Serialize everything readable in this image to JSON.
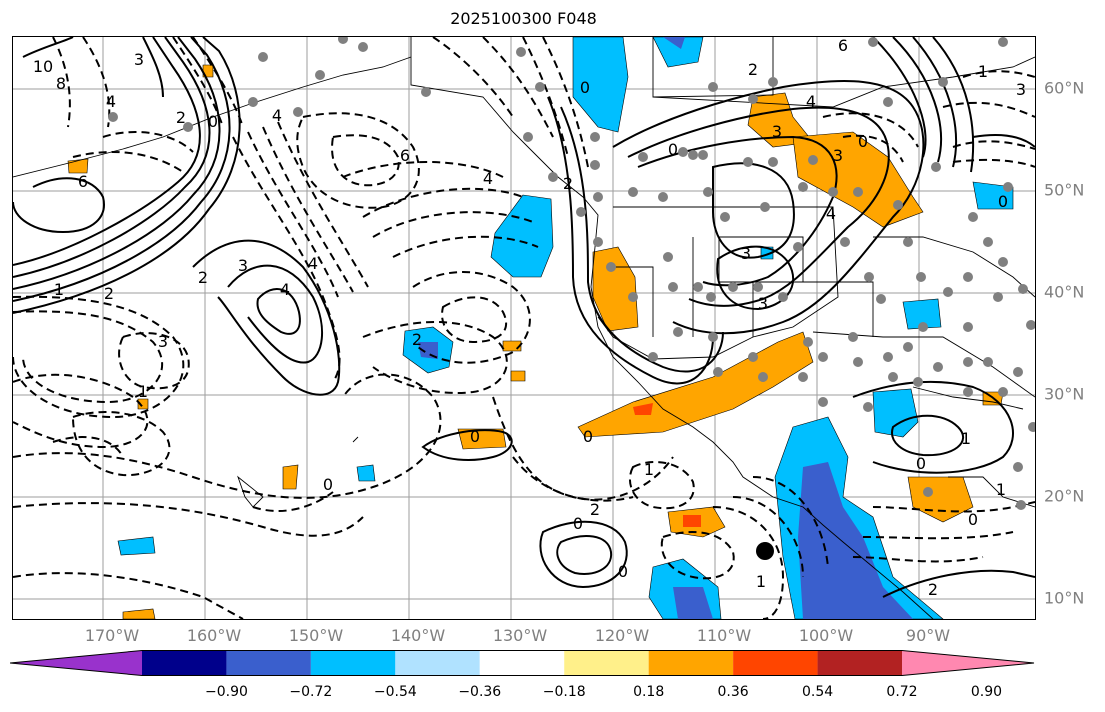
{
  "title": "2025100300 F048",
  "map": {
    "latitude_labels": [
      "60°N",
      "50°N",
      "40°N",
      "30°N",
      "20°N",
      "10°N"
    ],
    "longitude_labels": [
      "170°W",
      "160°W",
      "150°W",
      "140°W",
      "130°W",
      "120°W",
      "110°W",
      "100°W",
      "90°W"
    ],
    "contour_labels": [
      "10",
      "8",
      "4",
      "3",
      "2",
      "4",
      "6",
      "6",
      "4",
      "2",
      "4",
      "3",
      "4",
      "1",
      "2",
      "3",
      "1",
      "0",
      "2",
      "0",
      "2",
      "0",
      "1",
      "0",
      "0",
      "2",
      "0",
      "3",
      "4",
      "3",
      "6",
      "4",
      "3",
      "3",
      "1",
      "0",
      "1",
      "0",
      "2",
      "1",
      "0",
      "3",
      "1",
      "2",
      "0",
      "0",
      "0"
    ],
    "colors": {
      "frame": "#000000",
      "grid": "#9e9e9e",
      "station": "#808080",
      "positive_light": "#ffe680",
      "positive_mid": "#ffa500",
      "positive_strong": "#ff4500",
      "negative_light": "#b0e0ff",
      "negative_mid": "#00bfff",
      "negative_strong": "#3a5fcd"
    }
  },
  "colorbar": {
    "segments": [
      {
        "color": "#9932cc"
      },
      {
        "color": "#00008b"
      },
      {
        "color": "#3a5fcd"
      },
      {
        "color": "#00bfff"
      },
      {
        "color": "#b0e2ff"
      },
      {
        "color": "#ffffff"
      },
      {
        "color": "#fff08a"
      },
      {
        "color": "#ffa500"
      },
      {
        "color": "#ff4500"
      },
      {
        "color": "#b22222"
      },
      {
        "color": "#ff88b0"
      }
    ],
    "tick_labels": [
      "−0.90",
      "−0.72",
      "−0.54",
      "−0.36",
      "−0.18",
      "0.18",
      "0.36",
      "0.54",
      "0.72",
      "0.90"
    ]
  }
}
